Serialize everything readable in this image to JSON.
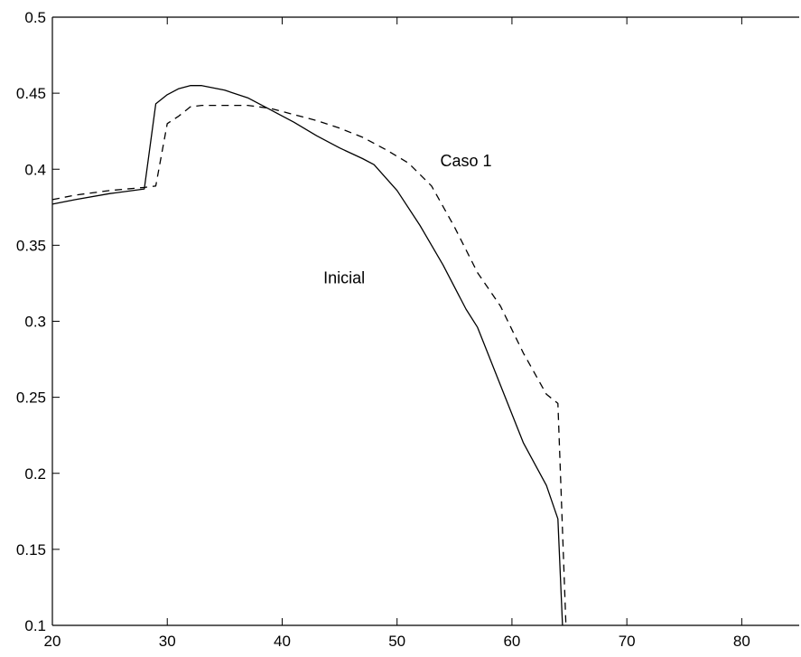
{
  "chart_data": {
    "type": "line",
    "title": "",
    "xlabel": "",
    "ylabel": "",
    "xlim": [
      20,
      85
    ],
    "ylim": [
      0.1,
      0.5
    ],
    "x_ticks": [
      20,
      30,
      40,
      50,
      60,
      70,
      80
    ],
    "x_tick_labels": [
      "20",
      "30",
      "40",
      "50",
      "60",
      "70",
      "80"
    ],
    "y_ticks": [
      0.1,
      0.15,
      0.2,
      0.25,
      0.3,
      0.35,
      0.4,
      0.45,
      0.5
    ],
    "y_tick_labels": [
      "0.1",
      "0.15",
      "0.2",
      "0.25",
      "0.3",
      "0.35",
      "0.4",
      "0.45",
      "0.5"
    ],
    "grid": false,
    "colors": {
      "line": "#000000",
      "axes": "#000000",
      "background": "#ffffff"
    },
    "series": [
      {
        "style": "solid",
        "x": [
          20,
          22,
          25,
          28,
          29,
          30,
          31,
          32,
          33,
          35,
          37,
          39,
          41,
          43,
          45,
          47,
          48,
          50,
          52,
          54,
          56,
          57,
          59,
          61,
          63,
          64,
          64.4
        ],
        "y": [
          0.377,
          0.38,
          0.384,
          0.387,
          0.443,
          0.449,
          0.453,
          0.455,
          0.455,
          0.452,
          0.447,
          0.439,
          0.431,
          0.422,
          0.414,
          0.407,
          0.403,
          0.386,
          0.363,
          0.337,
          0.308,
          0.296,
          0.258,
          0.22,
          0.192,
          0.17,
          0.1
        ]
      },
      {
        "style": "dashed",
        "x": [
          20,
          22,
          25,
          28,
          29,
          30,
          31,
          32,
          33,
          35,
          37,
          39,
          41,
          43,
          45,
          47,
          49,
          51,
          53,
          55,
          57,
          59,
          61,
          63,
          64,
          64.7
        ],
        "y": [
          0.38,
          0.383,
          0.386,
          0.388,
          0.389,
          0.43,
          0.435,
          0.441,
          0.442,
          0.442,
          0.442,
          0.44,
          0.436,
          0.432,
          0.427,
          0.421,
          0.413,
          0.404,
          0.389,
          0.362,
          0.332,
          0.31,
          0.279,
          0.252,
          0.246,
          0.1
        ]
      }
    ],
    "annotations": [
      {
        "text": "Caso 1",
        "x": 56,
        "y": 0.402
      },
      {
        "text": "Inicial",
        "x": 45.4,
        "y": 0.325
      }
    ]
  }
}
